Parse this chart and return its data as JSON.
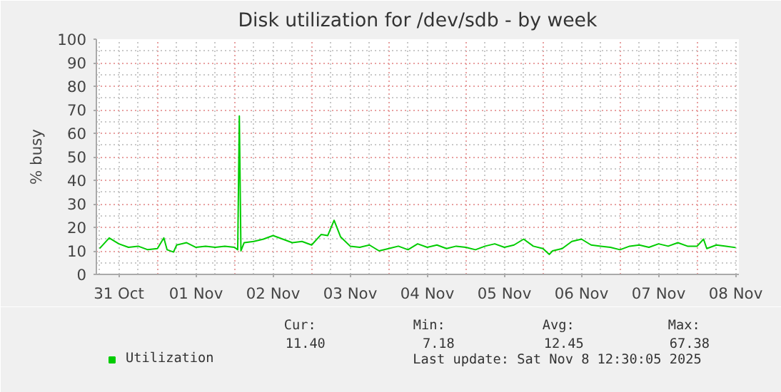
{
  "chart_data": {
    "type": "line",
    "title": "Disk utilization for /dev/sdb - by week",
    "ylabel": "% busy",
    "xlim": [
      "2025-10-31T05:00",
      "2025-11-08T13:00"
    ],
    "xticks": [
      {
        "value": "2025-10-31T12:00",
        "label": "31 Oct"
      },
      {
        "value": "2025-11-01T12:00",
        "label": "01 Nov"
      },
      {
        "value": "2025-11-02T12:00",
        "label": "02 Nov"
      },
      {
        "value": "2025-11-03T12:00",
        "label": "03 Nov"
      },
      {
        "value": "2025-11-04T12:00",
        "label": "04 Nov"
      },
      {
        "value": "2025-11-05T12:00",
        "label": "05 Nov"
      },
      {
        "value": "2025-11-06T12:00",
        "label": "06 Nov"
      },
      {
        "value": "2025-11-07T12:00",
        "label": "07 Nov"
      },
      {
        "value": "2025-11-08T12:00",
        "label": "08 Nov"
      }
    ],
    "ylim": [
      0,
      100
    ],
    "yticks": [
      0,
      10,
      20,
      30,
      40,
      50,
      60,
      70,
      80,
      90,
      100
    ],
    "grid": true,
    "legend": "bottom",
    "series": [
      {
        "name": "Utilization",
        "color": "#00cc00",
        "x": [
          "2025-10-31T06:00",
          "2025-10-31T09:00",
          "2025-10-31T12:00",
          "2025-10-31T15:00",
          "2025-10-31T18:00",
          "2025-10-31T21:00",
          "2025-11-01T00:00",
          "2025-11-01T02:00",
          "2025-11-01T03:00",
          "2025-11-01T05:00",
          "2025-11-01T06:00",
          "2025-11-01T09:00",
          "2025-11-01T12:00",
          "2025-11-01T15:00",
          "2025-11-01T18:00",
          "2025-11-01T21:00",
          "2025-11-02T00:00",
          "2025-11-02T01:00",
          "2025-11-02T01:30",
          "2025-11-02T02:00",
          "2025-11-02T03:00",
          "2025-11-02T06:00",
          "2025-11-02T09:00",
          "2025-11-02T12:00",
          "2025-11-02T15:00",
          "2025-11-02T18:00",
          "2025-11-02T21:00",
          "2025-11-03T00:00",
          "2025-11-03T03:00",
          "2025-11-03T05:00",
          "2025-11-03T07:00",
          "2025-11-03T09:00",
          "2025-11-03T12:00",
          "2025-11-03T15:00",
          "2025-11-03T18:00",
          "2025-11-03T21:00",
          "2025-11-04T00:00",
          "2025-11-04T03:00",
          "2025-11-04T06:00",
          "2025-11-04T09:00",
          "2025-11-04T12:00",
          "2025-11-04T15:00",
          "2025-11-04T18:00",
          "2025-11-04T21:00",
          "2025-11-05T00:00",
          "2025-11-05T03:00",
          "2025-11-05T06:00",
          "2025-11-05T09:00",
          "2025-11-05T12:00",
          "2025-11-05T15:00",
          "2025-11-05T18:00",
          "2025-11-05T21:00",
          "2025-11-06T00:00",
          "2025-11-06T02:00",
          "2025-11-06T03:00",
          "2025-11-06T06:00",
          "2025-11-06T09:00",
          "2025-11-06T12:00",
          "2025-11-06T15:00",
          "2025-11-06T18:00",
          "2025-11-06T21:00",
          "2025-11-07T00:00",
          "2025-11-07T03:00",
          "2025-11-07T06:00",
          "2025-11-07T09:00",
          "2025-11-07T12:00",
          "2025-11-07T15:00",
          "2025-11-07T18:00",
          "2025-11-07T21:00",
          "2025-11-08T00:00",
          "2025-11-08T02:00",
          "2025-11-08T03:00",
          "2025-11-08T06:00",
          "2025-11-08T09:00",
          "2025-11-08T12:00"
        ],
        "values": [
          11,
          15.5,
          13,
          11.5,
          12,
          10.5,
          11,
          15.5,
          10.5,
          9.5,
          12.5,
          13.5,
          11.5,
          12,
          11.5,
          12,
          11.5,
          10.5,
          67.38,
          10,
          13.5,
          14,
          15,
          16.5,
          15,
          13.5,
          14,
          12.5,
          17,
          16.5,
          23,
          16,
          12,
          11.5,
          12.5,
          10,
          11,
          12,
          10.5,
          13,
          11.5,
          12.5,
          11,
          12,
          11.5,
          10.5,
          12,
          13,
          11.5,
          12.5,
          15,
          12,
          11,
          8.5,
          10,
          11,
          14,
          15,
          12.5,
          12,
          11.5,
          10.5,
          12,
          12.5,
          11.5,
          13,
          12,
          13.5,
          12,
          12,
          15,
          11,
          12.5,
          12,
          11.4
        ]
      }
    ],
    "annotations": [
      "Cur:",
      "Min:",
      "Avg:",
      "Max:",
      "11.40",
      "7.18",
      "12.45",
      "67.38",
      "Last update: Sat Nov  8 12:30:05 2025"
    ]
  }
}
